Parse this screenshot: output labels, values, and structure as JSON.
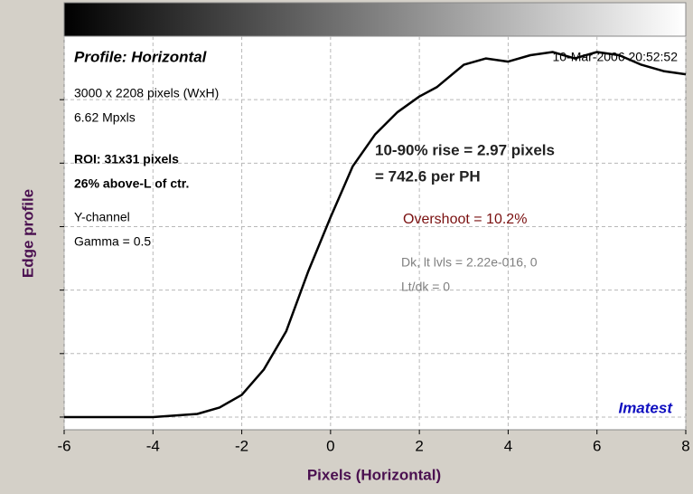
{
  "chart_data": {
    "type": "line",
    "title": "Profile: Horizontal",
    "date": "10-Mar-2006 20:52:52",
    "xlabel": "Pixels (Horizontal)",
    "ylabel": "Edge profile",
    "brand": "Imatest",
    "info": [
      "3000 x 2208 pixels (WxH)",
      "6.62 Mpxls",
      "ROI: 31x31 pixels",
      "26% above-L of ctr.",
      "Y-channel",
      "Gamma = 0.5"
    ],
    "rise": [
      "10-90% rise = 2.97 pixels",
      "= 742.6 per PH"
    ],
    "overshoot": "Overshoot = 10.2%",
    "levels": [
      "Dk, lt lvls = 2.22e-016, 0",
      "Lt/dk = 0"
    ],
    "xlim": [
      -6,
      8
    ],
    "xticks": [
      -6,
      -4,
      -2,
      0,
      2,
      4,
      6,
      8
    ],
    "ylim": [
      -0.04,
      1.2
    ],
    "yticks": [
      0,
      0.2,
      0.4,
      0.6,
      0.8,
      1.0
    ],
    "grid": true,
    "series": [
      {
        "name": "Edge profile",
        "color": "#000000",
        "x": [
          -6,
          -5,
          -4,
          -3,
          -2.5,
          -2,
          -1.5,
          -1,
          -0.5,
          0,
          0.5,
          1,
          1.5,
          2,
          2.4,
          3,
          3.5,
          4,
          4.5,
          5,
          5.5,
          6,
          6.5,
          7,
          7.5,
          8
        ],
        "values": [
          0,
          0,
          0,
          0.01,
          0.03,
          0.07,
          0.15,
          0.27,
          0.46,
          0.63,
          0.79,
          0.89,
          0.96,
          1.01,
          1.04,
          1.11,
          1.13,
          1.12,
          1.14,
          1.15,
          1.13,
          1.15,
          1.14,
          1.11,
          1.09,
          1.08
        ]
      }
    ]
  }
}
